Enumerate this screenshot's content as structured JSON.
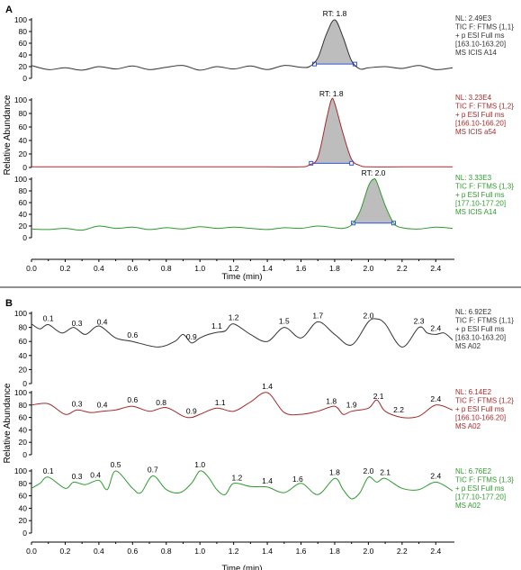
{
  "panels": [
    {
      "label": "A",
      "ylabel": "Relative Abundance",
      "xlabel": "Time (min)",
      "xticks": [
        "0.0",
        "0.2",
        "0.4",
        "0.6",
        "0.8",
        "1.0",
        "1.2",
        "1.4",
        "1.6",
        "1.8",
        "2.0",
        "2.2",
        "2.4"
      ],
      "yticks": [
        "0",
        "20",
        "40",
        "60",
        "80",
        "100"
      ],
      "traces": [
        {
          "color": "#333333",
          "info": [
            "NL: 2.49E3",
            "TIC F: FTMS {1,1}",
            "+ p ESI Full ms",
            "[163.10-163.20]",
            "MS  ICIS A14"
          ],
          "peak_label": "RT: 1.8"
        },
        {
          "color": "#a52a2a",
          "info": [
            "NL: 3.23E4",
            "TIC F: FTMS {1,2}",
            "+ p ESI Full ms",
            "[166.10-166.20]",
            "MS  ICIS a54"
          ],
          "peak_label": "RT: 1.8"
        },
        {
          "color": "#2e9a2e",
          "info": [
            "NL: 3.33E3",
            "TIC F: FTMS {1,3}",
            "+ p ESI Full ms",
            "[177.10-177.20]",
            "MS  ICIS A14"
          ],
          "peak_label": "RT: 2.0"
        }
      ]
    },
    {
      "label": "B",
      "ylabel": "Relative Abundance",
      "xlabel": "Time (min)",
      "xticks": [
        "0.0",
        "0.2",
        "0.4",
        "0.6",
        "0.8",
        "1.0",
        "1.2",
        "1.4",
        "1.6",
        "1.8",
        "2.0",
        "2.2",
        "2.4"
      ],
      "yticks": [
        "0",
        "20",
        "40",
        "60",
        "80",
        "100"
      ],
      "traces": [
        {
          "color": "#333333",
          "info": [
            "NL: 6.92E2",
            "TIC F: FTMS {1,1}",
            "+ p ESI Full ms",
            "[163.10-163.20]",
            "MS A02"
          ]
        },
        {
          "color": "#a52a2a",
          "info": [
            "NL: 6.14E2",
            "TIC F: FTMS {1,2}",
            "+ p ESI Full ms",
            "[166.10-166.20]",
            "MS A02"
          ]
        },
        {
          "color": "#2e9a2e",
          "info": [
            "NL: 6.76E2",
            "TIC F: FTMS {1,3}",
            "+ p ESI Full ms",
            "[177.10-177.20]",
            "MS A02"
          ]
        }
      ]
    }
  ],
  "chart_data": [
    {
      "type": "line",
      "title": "A",
      "xlabel": "Time (min)",
      "ylabel": "Relative Abundance",
      "xlim": [
        0,
        2.5
      ],
      "ylim": [
        0,
        100
      ],
      "series": [
        {
          "x": [
            0,
            0.1,
            0.2,
            0.3,
            0.4,
            0.5,
            0.6,
            0.7,
            0.8,
            0.9,
            1.0,
            1.1,
            1.2,
            1.3,
            1.4,
            1.5,
            1.6,
            1.65,
            1.7,
            1.75,
            1.8,
            1.85,
            1.9,
            1.95,
            2.0,
            2.1,
            2.2,
            2.3,
            2.4,
            2.5
          ],
          "y": [
            22,
            15,
            18,
            14,
            20,
            16,
            21,
            15,
            19,
            22,
            14,
            20,
            16,
            21,
            15,
            22,
            19,
            20,
            35,
            75,
            100,
            70,
            30,
            16,
            18,
            20,
            17,
            22,
            15,
            18
          ],
          "peaks": [
            {
              "x": 1.8,
              "y": 100,
              "label": "RT: 1.8"
            }
          ]
        },
        {
          "x": [
            0,
            0.2,
            0.4,
            0.6,
            0.8,
            1.0,
            1.2,
            1.4,
            1.6,
            1.65,
            1.7,
            1.75,
            1.78,
            1.8,
            1.85,
            1.9,
            1.95,
            2.0,
            2.2,
            2.4,
            2.5
          ],
          "y": [
            1,
            1,
            1,
            1,
            1,
            1,
            1,
            1,
            1,
            4,
            15,
            70,
            100,
            95,
            50,
            12,
            3,
            1,
            1,
            1,
            1
          ],
          "peaks": [
            {
              "x": 1.78,
              "y": 100,
              "label": "RT: 1.8"
            }
          ]
        },
        {
          "x": [
            0,
            0.1,
            0.2,
            0.3,
            0.4,
            0.5,
            0.6,
            0.7,
            0.8,
            0.9,
            1.0,
            1.1,
            1.2,
            1.3,
            1.4,
            1.5,
            1.6,
            1.7,
            1.8,
            1.85,
            1.9,
            1.95,
            2.0,
            2.03,
            2.05,
            2.1,
            2.15,
            2.2,
            2.3,
            2.4,
            2.5
          ],
          "y": [
            15,
            14,
            16,
            13,
            20,
            16,
            18,
            14,
            17,
            15,
            19,
            16,
            18,
            16,
            14,
            17,
            16,
            20,
            17,
            16,
            22,
            45,
            88,
            100,
            95,
            55,
            25,
            17,
            15,
            18,
            16
          ],
          "peaks": [
            {
              "x": 2.03,
              "y": 100,
              "label": "RT: 2.0"
            }
          ]
        }
      ]
    },
    {
      "type": "line",
      "title": "B",
      "xlabel": "Time (min)",
      "ylabel": "Relative Abundance",
      "xlim": [
        0,
        2.5
      ],
      "ylim": [
        0,
        100
      ],
      "series": [
        {
          "x": [
            0,
            0.05,
            0.1,
            0.18,
            0.25,
            0.32,
            0.4,
            0.5,
            0.6,
            0.75,
            0.85,
            0.9,
            0.95,
            1.0,
            1.05,
            1.1,
            1.15,
            1.2,
            1.3,
            1.4,
            1.5,
            1.6,
            1.7,
            1.8,
            1.9,
            2.0,
            2.05,
            2.1,
            2.2,
            2.3,
            2.35,
            2.4,
            2.45,
            2.5
          ],
          "y": [
            85,
            78,
            84,
            72,
            80,
            70,
            82,
            65,
            60,
            52,
            60,
            70,
            58,
            65,
            70,
            73,
            75,
            85,
            70,
            60,
            80,
            65,
            88,
            70,
            55,
            88,
            92,
            85,
            52,
            80,
            72,
            70,
            72,
            62
          ],
          "peaks": [
            {
              "x": 0.1,
              "label": "0.1"
            },
            {
              "x": 0.27,
              "label": "0.3"
            },
            {
              "x": 0.42,
              "label": "0.4"
            },
            {
              "x": 0.6,
              "label": "0.6"
            },
            {
              "x": 0.95,
              "label": "0.9"
            },
            {
              "x": 1.1,
              "label": "1.1"
            },
            {
              "x": 1.2,
              "label": "1.2"
            },
            {
              "x": 1.5,
              "label": "1.5"
            },
            {
              "x": 1.7,
              "label": "1.7"
            },
            {
              "x": 2.0,
              "label": "2.0"
            },
            {
              "x": 2.3,
              "label": "2.3"
            },
            {
              "x": 2.4,
              "label": "2.4"
            }
          ]
        },
        {
          "x": [
            0,
            0.1,
            0.2,
            0.27,
            0.35,
            0.42,
            0.5,
            0.6,
            0.7,
            0.8,
            0.9,
            0.95,
            1.0,
            1.1,
            1.2,
            1.3,
            1.4,
            1.5,
            1.6,
            1.7,
            1.8,
            1.85,
            1.9,
            2.0,
            2.05,
            2.1,
            2.2,
            2.3,
            2.4,
            2.5
          ],
          "y": [
            80,
            82,
            65,
            72,
            68,
            70,
            72,
            78,
            70,
            76,
            62,
            60,
            65,
            75,
            70,
            85,
            100,
            68,
            65,
            70,
            78,
            65,
            70,
            75,
            88,
            70,
            60,
            62,
            80,
            72
          ],
          "peaks": [
            {
              "x": 0.27,
              "label": "0.3"
            },
            {
              "x": 0.42,
              "label": "0.4"
            },
            {
              "x": 0.6,
              "label": "0.6"
            },
            {
              "x": 0.77,
              "label": "0.8"
            },
            {
              "x": 0.95,
              "label": "0.9"
            },
            {
              "x": 1.12,
              "label": "1.1"
            },
            {
              "x": 1.4,
              "label": "1.4"
            },
            {
              "x": 1.78,
              "label": "1.8"
            },
            {
              "x": 1.9,
              "label": "1.9"
            },
            {
              "x": 2.06,
              "label": "2.1"
            },
            {
              "x": 2.18,
              "label": "2.2"
            },
            {
              "x": 2.4,
              "label": "2.4"
            }
          ]
        },
        {
          "x": [
            0,
            0.05,
            0.1,
            0.2,
            0.25,
            0.32,
            0.4,
            0.45,
            0.5,
            0.6,
            0.65,
            0.72,
            0.8,
            0.88,
            0.95,
            1.0,
            1.05,
            1.1,
            1.15,
            1.2,
            1.3,
            1.4,
            1.5,
            1.6,
            1.7,
            1.8,
            1.85,
            1.9,
            1.95,
            2.0,
            2.05,
            2.1,
            2.2,
            2.3,
            2.4,
            2.5
          ],
          "y": [
            72,
            80,
            90,
            72,
            82,
            78,
            85,
            70,
            100,
            72,
            65,
            92,
            70,
            65,
            80,
            100,
            90,
            70,
            62,
            80,
            75,
            74,
            65,
            80,
            62,
            88,
            70,
            55,
            65,
            90,
            82,
            88,
            72,
            70,
            82,
            68
          ],
          "peaks": [
            {
              "x": 0.1,
              "label": "0.1"
            },
            {
              "x": 0.27,
              "label": "0.3"
            },
            {
              "x": 0.38,
              "label": "0.4"
            },
            {
              "x": 0.5,
              "label": "0.5"
            },
            {
              "x": 0.72,
              "label": "0.7"
            },
            {
              "x": 1.0,
              "label": "1.0"
            },
            {
              "x": 1.22,
              "label": "1.2"
            },
            {
              "x": 1.4,
              "label": "1.4"
            },
            {
              "x": 1.58,
              "label": "1.6"
            },
            {
              "x": 1.8,
              "label": "1.8"
            },
            {
              "x": 2.0,
              "label": "2.0"
            },
            {
              "x": 2.1,
              "label": "2.1"
            },
            {
              "x": 2.4,
              "label": "2.4"
            }
          ]
        }
      ]
    }
  ]
}
